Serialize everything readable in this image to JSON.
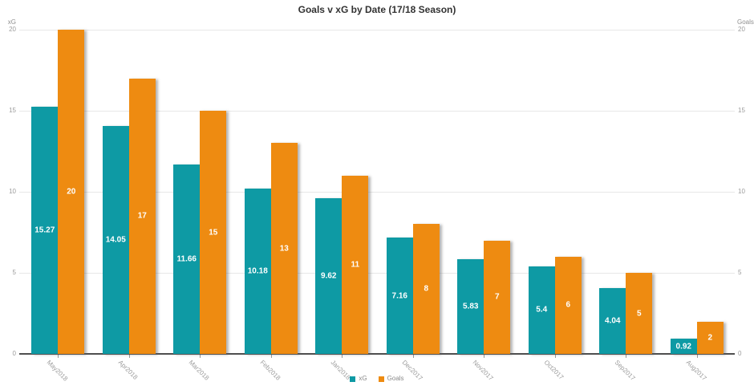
{
  "title": "Goals v xG by Date (17/18 Season)",
  "chart_data": {
    "type": "bar",
    "title": "Goals v xG by Date (17/18 Season)",
    "categories": [
      "May2018",
      "Apr2018",
      "Mar2018",
      "Feb2018",
      "Jan2018",
      "Dec2017",
      "Nov2017",
      "Oct2017",
      "Sep2017",
      "Aug2017"
    ],
    "series": [
      {
        "name": "xG",
        "axis": "left",
        "color": "#0e9aa4",
        "values": [
          15.27,
          14.05,
          11.66,
          10.18,
          9.62,
          7.16,
          5.83,
          5.4,
          4.04,
          0.92
        ],
        "labels": [
          "15.27",
          "14.05",
          "11.66",
          "10.18",
          "9.62",
          "7.16",
          "5.83",
          "5.4",
          "4.04",
          "0.92"
        ]
      },
      {
        "name": "Goals",
        "axis": "right",
        "color": "#ee8b11",
        "values": [
          20,
          17,
          15,
          13,
          11,
          8,
          7,
          6,
          5,
          2
        ],
        "labels": [
          "20",
          "17",
          "15",
          "13",
          "11",
          "8",
          "7",
          "6",
          "5",
          "2"
        ]
      }
    ],
    "left_axis": {
      "label": "xG",
      "min": 0,
      "max": 20,
      "ticks": [
        0,
        5,
        10,
        15,
        20
      ]
    },
    "right_axis": {
      "label": "Goals",
      "min": 0,
      "max": 20,
      "ticks": [
        0,
        5,
        10,
        15,
        20
      ]
    },
    "legend": {
      "position": "bottom",
      "entries": [
        "xG",
        "Goals"
      ]
    },
    "grid": true,
    "colors": {
      "xg_bar": "#0e9aa4",
      "goals_bar": "#ee8b11",
      "gridline": "#e7e7e7",
      "axis_line": "#4f4f4f",
      "tick_text": "#9b9b9b",
      "title_text": "#323232",
      "bar_label_text": "#ffffff"
    }
  }
}
